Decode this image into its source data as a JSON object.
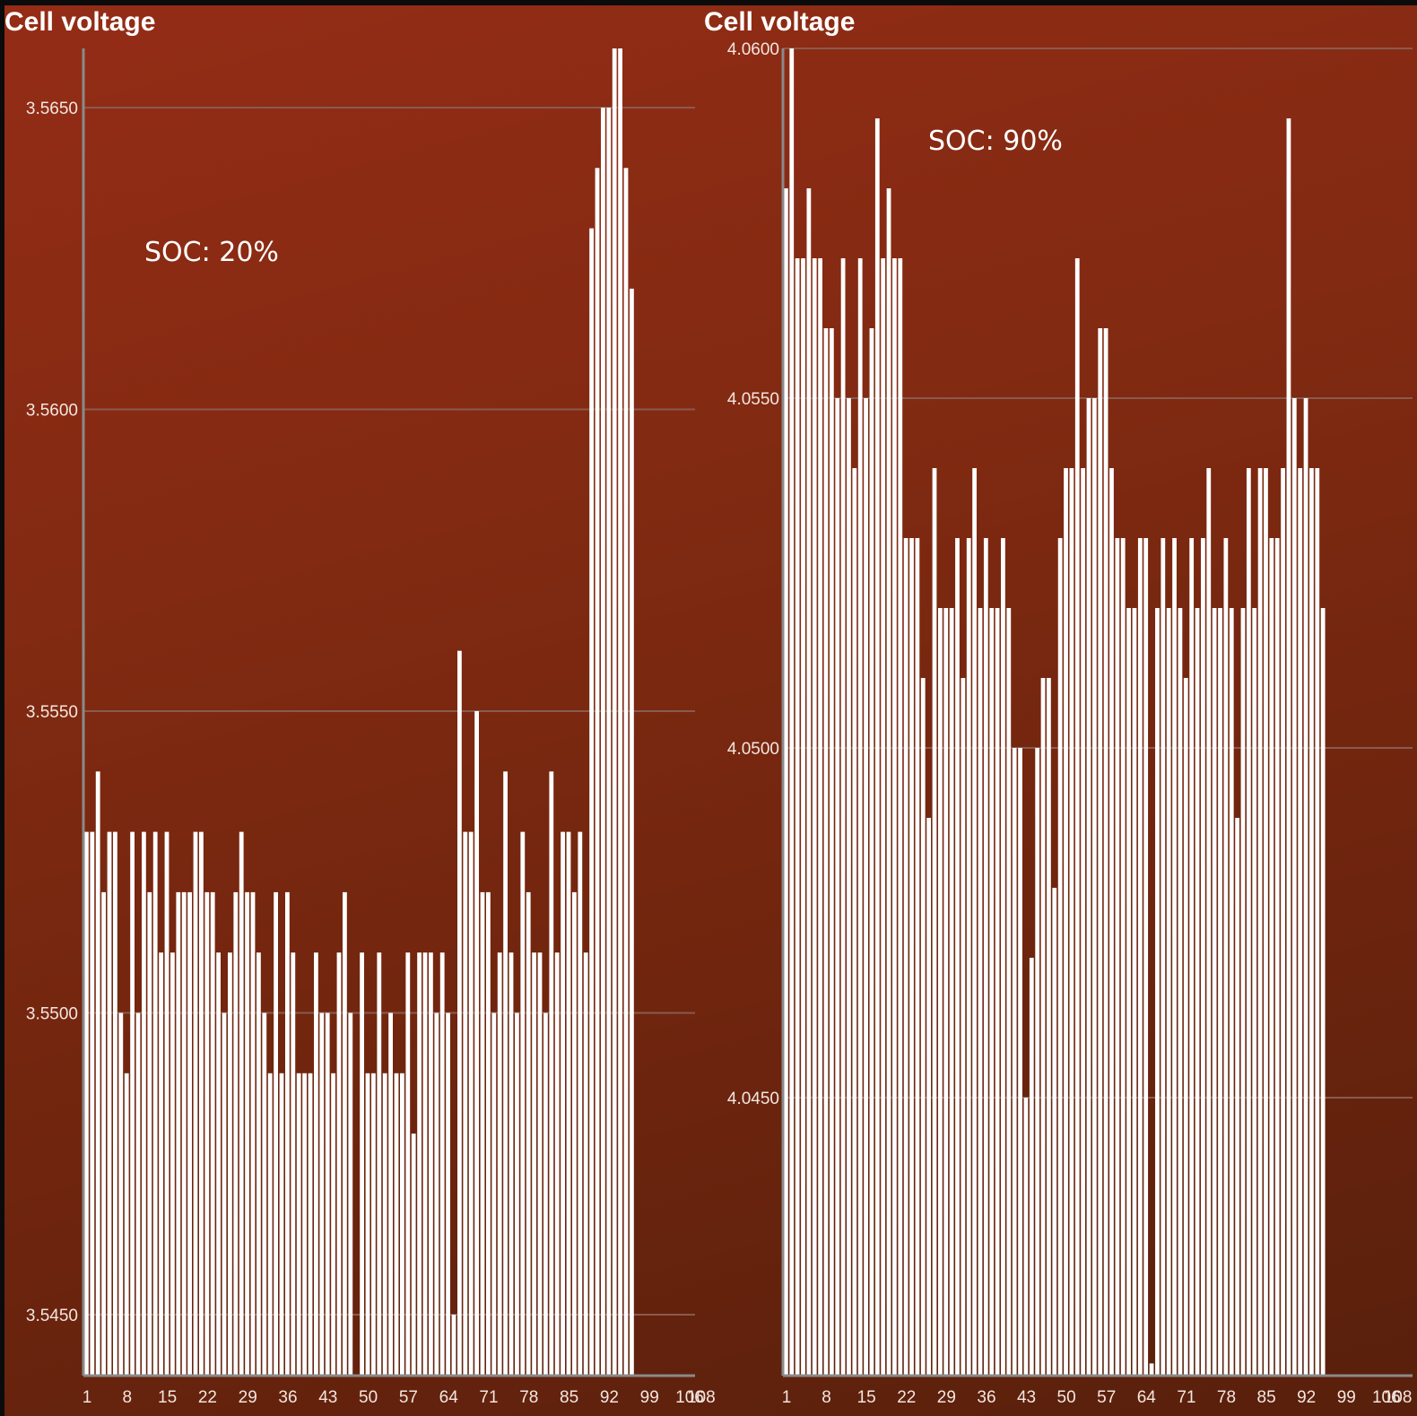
{
  "colors": {
    "background_top": "#942c16",
    "background_bottom": "#58200c",
    "bar": "#ffffff",
    "grid": "#8a5a4e",
    "axis": "#8a8a8a"
  },
  "panels": [
    {
      "title": "Cell voltage",
      "annotation": "SOC: 20%"
    },
    {
      "title": "Cell voltage",
      "annotation": "SOC: 90%"
    }
  ],
  "chart_data": [
    {
      "type": "bar",
      "title": "Cell voltage",
      "annotation": "SOC: 20%",
      "xlabel": "",
      "ylabel": "",
      "x_ticks": [
        "1",
        "8",
        "15",
        "22",
        "29",
        "36",
        "43",
        "50",
        "57",
        "64",
        "71",
        "78",
        "85",
        "92",
        "99",
        "106",
        "108"
      ],
      "y_ticks": [
        "3.5450",
        "3.5500",
        "3.5550",
        "3.5600",
        "3.5650"
      ],
      "ylim": [
        3.544,
        3.567
      ],
      "grid": true,
      "categories_range": [
        1,
        96
      ],
      "values": [
        3.553,
        3.553,
        3.554,
        3.552,
        3.553,
        3.553,
        3.55,
        3.549,
        3.553,
        3.55,
        3.553,
        3.552,
        3.553,
        3.551,
        3.553,
        3.551,
        3.552,
        3.552,
        3.552,
        3.553,
        3.553,
        3.552,
        3.552,
        3.551,
        3.55,
        3.551,
        3.552,
        3.553,
        3.552,
        3.552,
        3.551,
        3.55,
        3.549,
        3.552,
        3.549,
        3.552,
        3.551,
        3.549,
        3.549,
        3.549,
        3.551,
        3.55,
        3.55,
        3.549,
        3.551,
        3.552,
        3.55,
        3.544,
        3.551,
        3.549,
        3.549,
        3.551,
        3.549,
        3.55,
        3.549,
        3.549,
        3.551,
        3.548,
        3.551,
        3.551,
        3.551,
        3.55,
        3.551,
        3.55,
        3.545,
        3.556,
        3.553,
        3.553,
        3.555,
        3.552,
        3.552,
        3.55,
        3.551,
        3.554,
        3.551,
        3.55,
        3.553,
        3.552,
        3.551,
        3.551,
        3.55,
        3.554,
        3.551,
        3.553,
        3.553,
        3.552,
        3.553,
        3.551,
        3.563,
        3.564,
        3.565,
        3.565,
        3.566,
        3.566,
        3.564,
        3.562
      ]
    },
    {
      "type": "bar",
      "title": "Cell voltage",
      "annotation": "SOC: 90%",
      "xlabel": "",
      "ylabel": "",
      "x_ticks": [
        "1",
        "8",
        "15",
        "22",
        "29",
        "36",
        "43",
        "50",
        "57",
        "64",
        "71",
        "78",
        "85",
        "92",
        "99",
        "106",
        "108"
      ],
      "y_ticks": [
        "4.0450",
        "4.0500",
        "4.0550",
        "4.0600"
      ],
      "ylim": [
        4.0412,
        4.06
      ],
      "grid": true,
      "categories_range": [
        1,
        96
      ],
      "values": [
        4.058,
        4.06,
        4.057,
        4.057,
        4.058,
        4.057,
        4.057,
        4.056,
        4.056,
        4.055,
        4.057,
        4.055,
        4.054,
        4.057,
        4.055,
        4.056,
        4.059,
        4.057,
        4.058,
        4.057,
        4.057,
        4.053,
        4.053,
        4.053,
        4.051,
        4.049,
        4.054,
        4.052,
        4.052,
        4.052,
        4.053,
        4.051,
        4.053,
        4.054,
        4.052,
        4.053,
        4.052,
        4.052,
        4.053,
        4.052,
        4.05,
        4.05,
        4.045,
        4.047,
        4.05,
        4.051,
        4.051,
        4.048,
        4.053,
        4.054,
        4.054,
        4.057,
        4.054,
        4.055,
        4.055,
        4.056,
        4.056,
        4.054,
        4.053,
        4.053,
        4.052,
        4.052,
        4.053,
        4.053,
        4.0412,
        4.052,
        4.053,
        4.052,
        4.053,
        4.052,
        4.051,
        4.053,
        4.052,
        4.053,
        4.054,
        4.052,
        4.052,
        4.053,
        4.052,
        4.049,
        4.052,
        4.054,
        4.052,
        4.054,
        4.054,
        4.053,
        4.053,
        4.054,
        4.059,
        4.055,
        4.054,
        4.055,
        4.054,
        4.054,
        4.052
      ]
    }
  ]
}
